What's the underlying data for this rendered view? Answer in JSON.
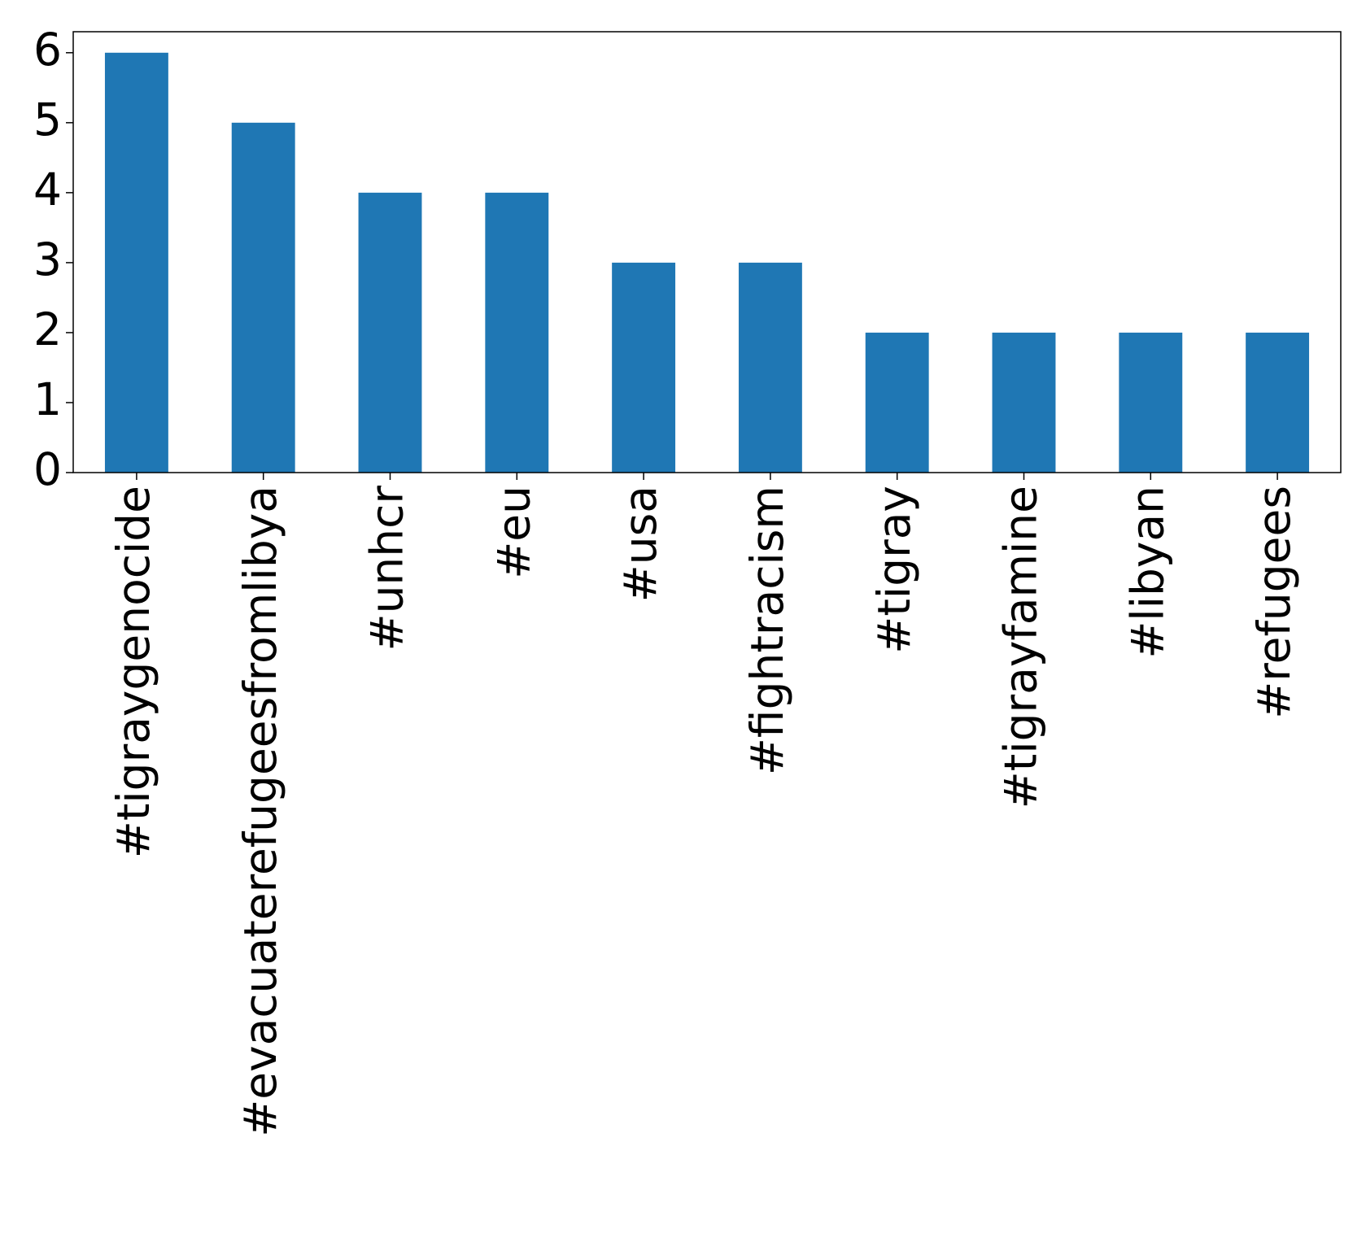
{
  "chart_data": {
    "type": "bar",
    "categories": [
      "#tigraygenocide",
      "#evacuaterefugeesfromlibya",
      "#unhcr",
      "#eu",
      "#usa",
      "#fightracism",
      "#tigray",
      "#tigrayfamine",
      "#libyan",
      "#refugees"
    ],
    "values": [
      6,
      5,
      4,
      4,
      3,
      3,
      2,
      2,
      2,
      2
    ],
    "color": "#1f77b4",
    "ylim": [
      0,
      6.3
    ],
    "yticks": [
      0,
      1,
      2,
      3,
      4,
      5,
      6
    ],
    "grid": false
  }
}
